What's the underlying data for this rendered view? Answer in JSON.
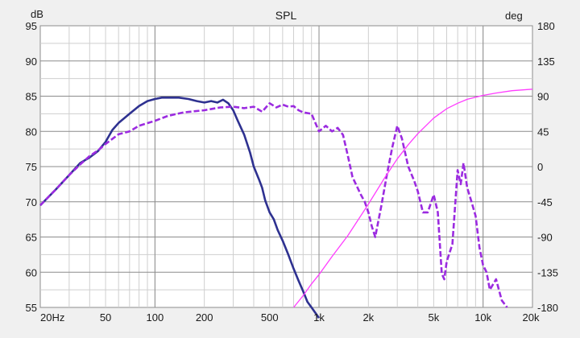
{
  "chart_data": {
    "type": "line",
    "title": "SPL",
    "y_left_unit": "dB",
    "y_right_unit": "deg",
    "x_scale": "log",
    "xlim": [
      20,
      20000
    ],
    "ylim_left": [
      55,
      95
    ],
    "ylim_right": [
      -180,
      180
    ],
    "x_ticks": [
      {
        "v": 20,
        "label": "20Hz"
      },
      {
        "v": 50,
        "label": "50"
      },
      {
        "v": 100,
        "label": "100"
      },
      {
        "v": 200,
        "label": "200"
      },
      {
        "v": 500,
        "label": "500"
      },
      {
        "v": 1000,
        "label": "1k"
      },
      {
        "v": 2000,
        "label": "2k"
      },
      {
        "v": 5000,
        "label": "5k"
      },
      {
        "v": 10000,
        "label": "10k"
      },
      {
        "v": 20000,
        "label": "20k"
      }
    ],
    "y_left_ticks": [
      55,
      60,
      65,
      70,
      75,
      80,
      85,
      90,
      95
    ],
    "y_right_ticks": [
      -180,
      -135,
      -90,
      -45,
      0,
      45,
      90,
      135,
      180
    ],
    "grid": true,
    "colors": {
      "spl_solid": "#2e3190",
      "spl_dashed": "#9b2be0",
      "phase": "#ff3cff",
      "major_grid": "#8c8c8c",
      "minor_grid": "#cfcfcf",
      "plot_bg": "#ffffff",
      "page_bg": "#f0f0f0"
    },
    "series": [
      {
        "axis": "left",
        "style": "solid",
        "x": [
          20,
          25,
          30,
          35,
          40,
          45,
          50,
          55,
          60,
          70,
          80,
          90,
          100,
          110,
          120,
          140,
          160,
          180,
          200,
          220,
          240,
          260,
          280,
          300,
          320,
          350,
          380,
          400,
          430,
          450,
          470,
          500,
          530,
          560,
          600,
          650,
          700,
          750,
          800,
          850,
          900,
          1000
        ],
        "y": [
          69.5,
          71.8,
          73.8,
          75.5,
          76.3,
          77.2,
          78.5,
          80.2,
          81.2,
          82.5,
          83.6,
          84.3,
          84.6,
          84.8,
          84.8,
          84.8,
          84.6,
          84.3,
          84.1,
          84.3,
          84.1,
          84.5,
          84.0,
          83.0,
          81.5,
          79.5,
          77.0,
          75.0,
          73.2,
          72.0,
          70.2,
          68.5,
          67.5,
          66.0,
          64.5,
          62.5,
          60.5,
          58.8,
          57.3,
          55.8,
          55.0,
          53.5
        ]
      },
      {
        "axis": "left",
        "style": "dashed",
        "x": [
          20,
          25,
          30,
          35,
          40,
          45,
          50,
          60,
          70,
          80,
          100,
          120,
          150,
          200,
          250,
          300,
          350,
          400,
          450,
          500,
          550,
          600,
          650,
          700,
          750,
          800,
          900,
          1000,
          1100,
          1200,
          1300,
          1400,
          1500,
          1600,
          1800,
          1900,
          2000,
          2100,
          2200,
          2400,
          2600,
          2800,
          3000,
          3200,
          3500,
          3800,
          4000,
          4300,
          4600,
          5000,
          5300,
          5600,
          5800,
          6000,
          6500,
          7000,
          7300,
          7600,
          8000,
          8500,
          9000,
          9500,
          10000,
          10500,
          11000,
          12000,
          13000,
          14000
        ],
        "y": [
          69.5,
          71.8,
          73.8,
          75.3,
          76.5,
          77.3,
          78.2,
          79.6,
          80.0,
          80.8,
          81.5,
          82.2,
          82.7,
          83.0,
          83.4,
          83.5,
          83.3,
          83.5,
          82.8,
          84.0,
          83.4,
          83.8,
          83.5,
          83.6,
          83.0,
          82.7,
          82.5,
          80.0,
          80.8,
          80.0,
          80.5,
          79.5,
          76.5,
          73.5,
          71.0,
          70.0,
          68.5,
          66.5,
          65.0,
          69.5,
          74.0,
          77.8,
          80.8,
          79.0,
          75.0,
          73.0,
          71.5,
          68.5,
          68.5,
          71.0,
          68.5,
          59.8,
          59.0,
          61.5,
          64.0,
          74.5,
          72.5,
          75.5,
          72.0,
          70.0,
          68.0,
          63.5,
          61.0,
          60.0,
          57.5,
          59.0,
          56.0,
          55.0
        ]
      },
      {
        "axis": "right",
        "style": "solid",
        "x": [
          700,
          800,
          900,
          1000,
          1200,
          1500,
          2000,
          2500,
          3000,
          3500,
          4000,
          5000,
          6000,
          7000,
          8000,
          10000,
          12000,
          15000,
          20000
        ],
        "y": [
          -180,
          -165,
          -150,
          -138,
          -115,
          -88,
          -48,
          -15,
          10,
          28,
          42,
          62,
          74,
          81,
          86,
          91,
          94,
          97,
          99
        ]
      }
    ]
  }
}
